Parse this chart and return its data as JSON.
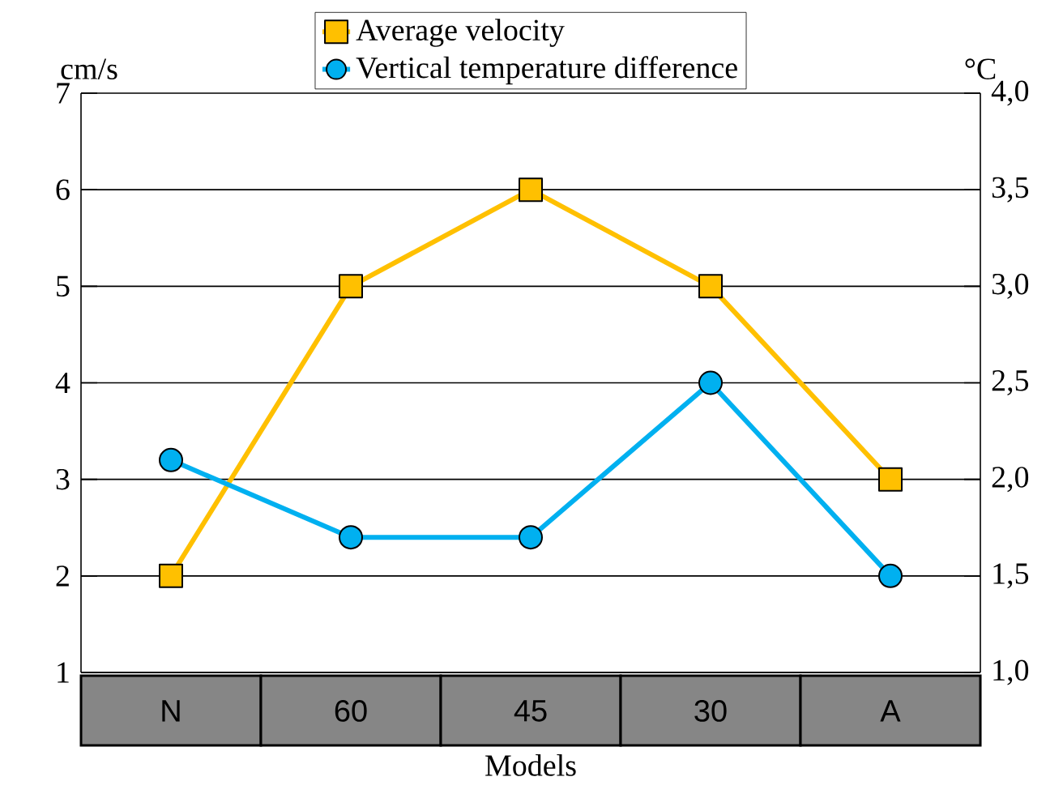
{
  "chart_data": {
    "type": "line",
    "xlabel": "Models",
    "ylabel": "cm/s",
    "y2label": "°C",
    "categories": [
      "N",
      "60",
      "45",
      "30",
      "A"
    ],
    "series": [
      {
        "name": "Average velocity",
        "color": "#ffc000",
        "marker": "square",
        "values": [
          2,
          5,
          6,
          5,
          3
        ]
      },
      {
        "name": "Vertical temperature difference",
        "color": "#00b0f0",
        "marker": "circle",
        "axis": "y2",
        "values": [
          2.1,
          1.7,
          1.7,
          2.5,
          1.5
        ]
      }
    ],
    "ylim": [
      1,
      7
    ],
    "yticks": [
      1,
      2,
      3,
      4,
      5,
      6,
      7
    ],
    "y2lim": [
      1.0,
      4.0
    ],
    "y2ticks": [
      {
        "value": 1.0,
        "label": "1,0"
      },
      {
        "value": 1.5,
        "label": "1,5"
      },
      {
        "value": 2.0,
        "label": "2,0"
      },
      {
        "value": 2.5,
        "label": "2,5"
      },
      {
        "value": 3.0,
        "label": "3,0"
      },
      {
        "value": 3.5,
        "label": "3,5"
      },
      {
        "value": 4.0,
        "label": "4,0"
      }
    ],
    "grid": "y",
    "legend": "top",
    "line_style": "solid"
  }
}
